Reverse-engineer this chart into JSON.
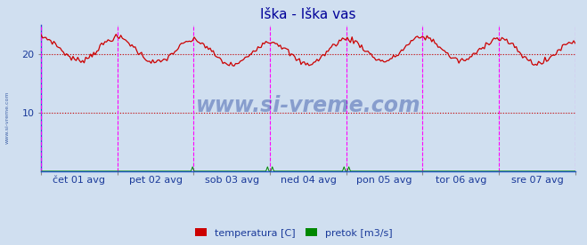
{
  "title": "Iška - Iška vas",
  "title_color": "#000099",
  "bg_color": "#d0dff0",
  "plot_bg_color": "#d0dff0",
  "grid_color": "#b0b8c8",
  "temp_color": "#cc0000",
  "flow_color": "#008800",
  "vline_color": "#ff00ff",
  "hline_color": "#cc0000",
  "watermark": "www.si-vreme.com",
  "watermark_color": "#1a3a9a",
  "ylabel_color": "#1a3a9a",
  "xlabel_color": "#1a3a9a",
  "spine_color": "#2255cc",
  "ylim": [
    0,
    25
  ],
  "ytick_positions": [
    10,
    20
  ],
  "ytick_labels": [
    "10",
    "20"
  ],
  "num_days": 7,
  "day_labels": [
    "čet 01 avg",
    "pet 02 avg",
    "sob 03 avg",
    "ned 04 avg",
    "pon 05 avg",
    "tor 06 avg",
    "sre 07 avg"
  ],
  "legend_labels": [
    "temperatura [C]",
    "pretok [m3/s]"
  ],
  "legend_colors": [
    "#cc0000",
    "#008800"
  ],
  "side_label": "www.si-vreme.com"
}
